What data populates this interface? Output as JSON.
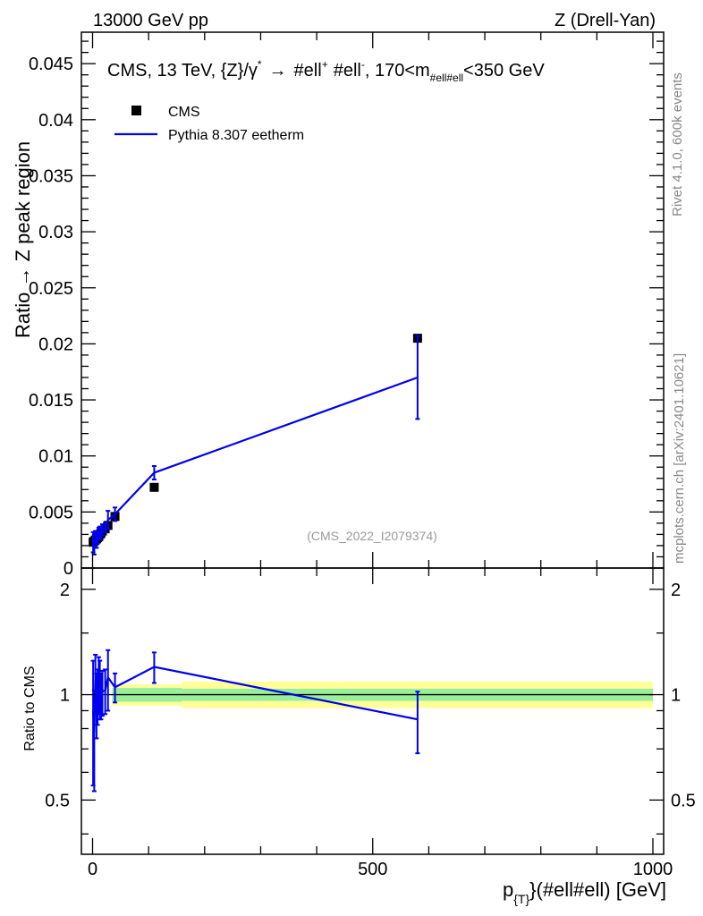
{
  "header": {
    "energy_label": "13000 GeV pp",
    "process_label": "Z (Drell-Yan)",
    "rivet_label": "Rivet 4.1.0,  600k events",
    "mcplots_label": "mcplots.cern.ch [arXiv:2401.10621]",
    "analysis_id": "(CMS_2022_I2079374)"
  },
  "plot_title": {
    "main": "CMS, 13 TeV, {Z}/γ",
    "star": "*",
    "arrow": "→",
    "ell1": "#ell",
    "plus": "+",
    "ell2": "#ell",
    "minus": "-",
    "range_lo": ", 170<m",
    "range_sub": "#ell#ell",
    "range_hi": "<350 GeV"
  },
  "legend": {
    "data_label": "CMS",
    "mc_label": "Pythia 8.307 eetherm"
  },
  "axes": {
    "main_ylabel": "Ratio → Z peak region",
    "ratio_ylabel": "Ratio to CMS",
    "xlabel_p": "p",
    "xlabel_sub": "{T}",
    "xlabel_rest": "}(#ell#ell) [GeV]",
    "main_yticks": [
      "0",
      "0.005",
      "0.01",
      "0.015",
      "0.02",
      "0.025",
      "0.03",
      "0.035",
      "0.04",
      "0.045"
    ],
    "ratio_yticks": [
      "0.5",
      "1",
      "2"
    ],
    "xticks": [
      "0",
      "500",
      "1000"
    ]
  },
  "chart_data": {
    "type": "line",
    "title": "CMS, 13 TeV, {Z}/γ* → #ell+ #ell-, 170<m#ell#ell<350 GeV",
    "xlabel": "p_{T}(#ell#ell) [GeV]",
    "ylabel": "Ratio → Z peak region",
    "xlim": [
      -20,
      1020
    ],
    "ylim": [
      0,
      0.048
    ],
    "ratio_ylim": [
      0.35,
      2.3
    ],
    "legend_position": "top-left",
    "data": {
      "name": "CMS",
      "x": [
        1,
        3,
        5,
        7,
        9,
        11,
        13,
        15,
        17.5,
        22.5,
        27.5,
        40,
        110,
        580
      ],
      "y": [
        0.0023,
        0.0024,
        0.0025,
        0.0026,
        0.0027,
        0.0028,
        0.003,
        0.0031,
        0.0033,
        0.0035,
        0.0038,
        0.0046,
        0.0072,
        0.0205
      ]
    },
    "mc": {
      "name": "Pythia 8.307 eetherm",
      "x": [
        1,
        3,
        5,
        7,
        9,
        11,
        13,
        15,
        17.5,
        22.5,
        27.5,
        40,
        110,
        580
      ],
      "y": [
        0.0023,
        0.0018,
        0.0028,
        0.0024,
        0.0027,
        0.0031,
        0.0032,
        0.0031,
        0.0034,
        0.0036,
        0.0043,
        0.0048,
        0.0085,
        0.017
      ],
      "yerr": [
        0.0009,
        0.0006,
        0.0005,
        0.0006,
        0.0005,
        0.0005,
        0.0005,
        0.0005,
        0.0005,
        0.0004,
        0.0008,
        0.0006,
        0.0006,
        0.0037
      ]
    },
    "ratio": {
      "x": [
        1,
        3,
        5,
        7,
        9,
        11,
        13,
        15,
        17.5,
        22.5,
        27.5,
        40,
        110,
        580
      ],
      "y": [
        0.9,
        0.78,
        1.1,
        0.95,
        1.0,
        1.08,
        1.05,
        1.0,
        1.02,
        1.03,
        1.12,
        1.05,
        1.2,
        0.85
      ],
      "err": [
        0.35,
        0.25,
        0.2,
        0.2,
        0.18,
        0.2,
        0.2,
        0.15,
        0.15,
        0.15,
        0.22,
        0.1,
        0.12,
        0.17
      ]
    },
    "bands": [
      {
        "x_from": 35,
        "x_to": 160,
        "stat": [
          0.955,
          1.045
        ],
        "total": [
          0.93,
          1.07
        ]
      },
      {
        "x_from": 160,
        "x_to": 1000,
        "stat": [
          0.96,
          1.04
        ],
        "total": [
          0.915,
          1.09
        ]
      }
    ],
    "reference_line": 1
  }
}
